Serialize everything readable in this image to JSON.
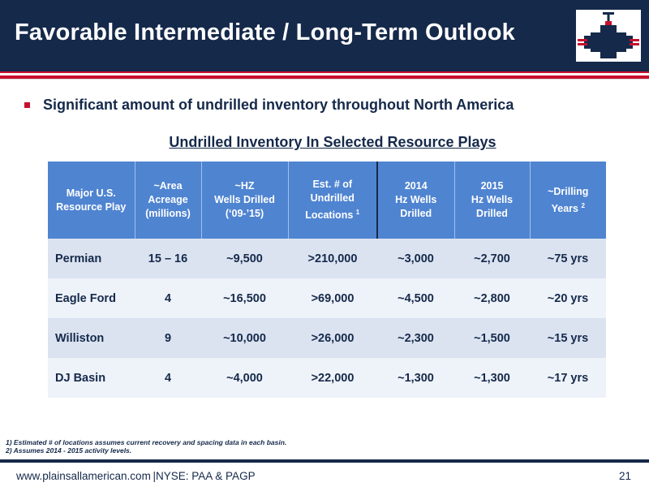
{
  "slide": {
    "title": "Favorable Intermediate / Long-Term Outlook",
    "bullet": "Significant amount of undrilled inventory throughout North America",
    "subtitle": "Undrilled Inventory In Selected Resource Plays"
  },
  "table": {
    "headers": [
      {
        "lines": [
          "Major U.S.",
          "Resource Play"
        ],
        "sup": ""
      },
      {
        "lines": [
          "~Area",
          "Acreage",
          "(millions)"
        ],
        "sup": ""
      },
      {
        "lines": [
          "~HZ",
          "Wells Drilled",
          "(‘09-’15)"
        ],
        "sup": ""
      },
      {
        "lines": [
          "Est. # of",
          "Undrilled",
          "Locations"
        ],
        "sup": "1"
      },
      {
        "lines": [
          "2014",
          "Hz Wells",
          "Drilled"
        ],
        "sup": ""
      },
      {
        "lines": [
          "2015",
          "Hz Wells",
          "Drilled"
        ],
        "sup": ""
      },
      {
        "lines": [
          "~Drilling",
          "Years"
        ],
        "sup": "2"
      }
    ],
    "rows": [
      [
        "Permian",
        "15 – 16",
        "~9,500",
        ">210,000",
        "~3,000",
        "~2,700",
        "~75 yrs"
      ],
      [
        "Eagle Ford",
        "4",
        "~16,500",
        ">69,000",
        "~4,500",
        "~2,800",
        "~20 yrs"
      ],
      [
        "Williston",
        "9",
        "~10,000",
        ">26,000",
        "~2,300",
        "~1,500",
        "~15 yrs"
      ],
      [
        "DJ Basin",
        "4",
        "~4,000",
        ">22,000",
        "~1,300",
        "~1,300",
        "~17 yrs"
      ]
    ]
  },
  "footnotes": [
    "1) Estimated # of locations assumes current recovery and spacing data in each basin.",
    "2) Assumes 2014 - 2015 activity levels."
  ],
  "footer": {
    "left": "www.plainsallamerican.com |NYSE: PAA & PAGP",
    "page": "21"
  },
  "colors": {
    "navy": "#15294a",
    "red": "#c8102e",
    "header_blue": "#4f84d1",
    "row_light": "#dbe3f1",
    "row_lighter": "#eef2f9"
  },
  "logo": {
    "icon": "pipeline-valve-logo-icon"
  }
}
